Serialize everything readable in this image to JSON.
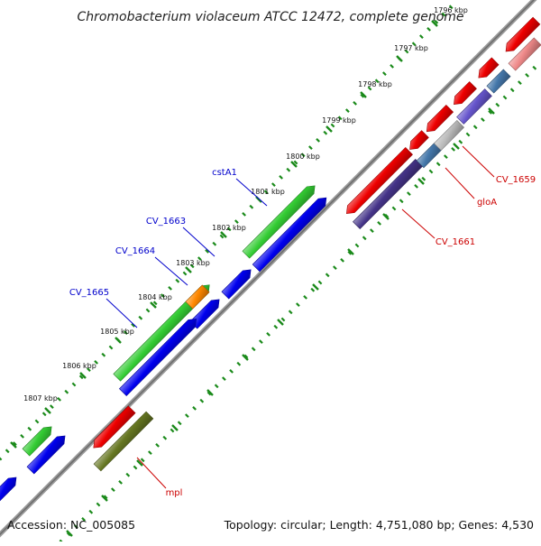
{
  "title": "Chromobacterium violaceum ATCC 12472, complete genome",
  "footer": {
    "accession": "Accession: NC_005085",
    "summary": "Topology: circular; Length: 4,751,080 bp; Genes: 4,530"
  },
  "kbp_labels": [
    "1796 kbp",
    "1797 kbp",
    "1798 kbp",
    "1799 kbp",
    "1800 kbp",
    "1801 kbp",
    "1802 kbp",
    "1803 kbp",
    "1804 kbp",
    "1805 kbp",
    "1806 kbp",
    "1807 kbp"
  ],
  "gene_labels": {
    "forward": [
      "cstA1",
      "CV_1663",
      "CV_1664",
      "CV_1665"
    ],
    "reverse": [
      "CV_1659",
      "gloA",
      "CV_1661",
      "mpl"
    ]
  },
  "colors": {
    "forward_label": "#0000cc",
    "reverse_label": "#cc0000",
    "backbone": "#777777",
    "tick": "#1a8a1a",
    "gene_green": "#33cc33",
    "gene_blue": "#0000ee",
    "gene_red": "#ee0000",
    "gene_orange": "#ff8800",
    "gene_olive": "#667722",
    "gene_navy": "#443388",
    "gene_steel": "#4477aa",
    "gene_grey": "#bbbbbb",
    "gene_violet": "#6655cc",
    "gene_pink": "#ee8888"
  }
}
